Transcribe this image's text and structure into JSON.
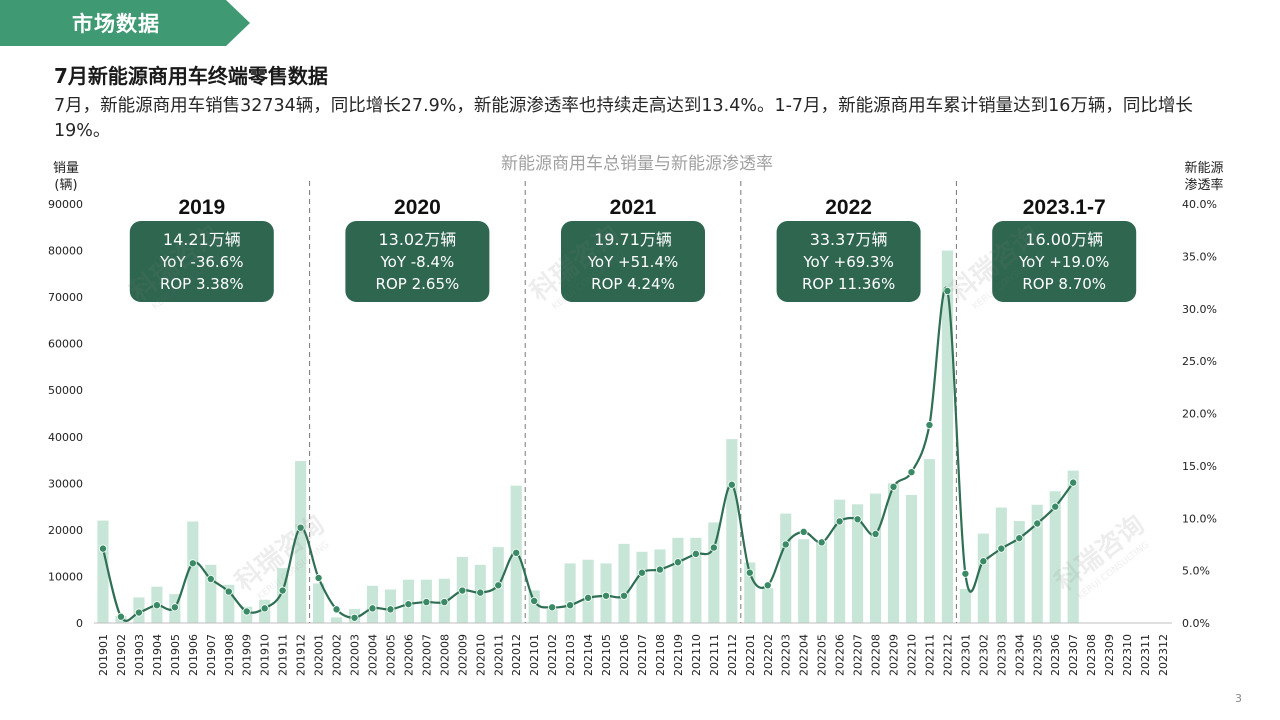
{
  "header": {
    "section_label": "市场数据"
  },
  "slide": {
    "title": "7月新能源商用车终端零售数据",
    "summary": "7月，新能源商用车销售32734辆，同比增长27.9%，新能源渗透率也持续走高达到13.4%。1-7月，新能源商用车累计销量达到16万辆，同比增长19%。",
    "page_number": "3"
  },
  "watermarks": [
    {
      "text": "科瑞咨询",
      "subtext": "KERUI CONSULTING"
    }
  ],
  "colors": {
    "banner": "#3f9a74",
    "bar": "#c8e6d8",
    "line": "#2f6f54",
    "marker": "#3a8a66",
    "box": "#2e6650",
    "divider": "#777777"
  },
  "chart_data": {
    "type": "bar",
    "title": "新能源商用车总销量与新能源渗透率",
    "ylabel_left": "销量\n(辆)",
    "ylabel_right": "新能源\n渗透率",
    "ylim_left": [
      0,
      90000
    ],
    "yticks_left": [
      "0",
      "10000",
      "20000",
      "30000",
      "40000",
      "50000",
      "60000",
      "70000",
      "80000",
      "90000"
    ],
    "ylim_right": [
      0,
      0.4
    ],
    "yticks_right": [
      "0.0%",
      "5.0%",
      "10.0%",
      "15.0%",
      "20.0%",
      "25.0%",
      "30.0%",
      "35.0%",
      "40.0%"
    ],
    "categories": [
      "201901",
      "201902",
      "201903",
      "201904",
      "201905",
      "201906",
      "201907",
      "201908",
      "201909",
      "201910",
      "201911",
      "201912",
      "202001",
      "202002",
      "202003",
      "202004",
      "202005",
      "202006",
      "202007",
      "202008",
      "202009",
      "202010",
      "202011",
      "202012",
      "202101",
      "202102",
      "202103",
      "202104",
      "202105",
      "202106",
      "202107",
      "202108",
      "202109",
      "202110",
      "202111",
      "202112",
      "202201",
      "202202",
      "202203",
      "202204",
      "202205",
      "202206",
      "202207",
      "202208",
      "202209",
      "202210",
      "202211",
      "202212",
      "202301",
      "202302",
      "202303",
      "202304",
      "202305",
      "202306",
      "202307",
      "202308",
      "202309",
      "202310",
      "202311",
      "202312"
    ],
    "series": [
      {
        "kind": "bar",
        "axis": "left",
        "values": [
          22000,
          1500,
          5500,
          7800,
          6200,
          21800,
          12500,
          8200,
          3500,
          5000,
          11800,
          34800,
          8500,
          1200,
          3000,
          8000,
          7200,
          9300,
          9300,
          9500,
          14200,
          12500,
          16300,
          29500,
          7000,
          3000,
          12800,
          13600,
          12800,
          17000,
          15300,
          15800,
          18300,
          18300,
          21600,
          39500,
          13000,
          7500,
          23500,
          18000,
          17500,
          26500,
          25500,
          27800,
          30000,
          27500,
          35200,
          80000,
          7300,
          19200,
          24800,
          21900,
          25400,
          28300,
          32734,
          null,
          null,
          null,
          null,
          null
        ]
      },
      {
        "kind": "line",
        "axis": "right",
        "values": [
          0.071,
          0.006,
          0.01,
          0.017,
          0.015,
          0.057,
          0.042,
          0.03,
          0.011,
          0.014,
          0.031,
          0.091,
          0.043,
          0.013,
          0.005,
          0.014,
          0.013,
          0.018,
          0.02,
          0.02,
          0.031,
          0.029,
          0.036,
          0.067,
          0.021,
          0.015,
          0.017,
          0.024,
          0.026,
          0.026,
          0.048,
          0.051,
          0.058,
          0.066,
          0.072,
          0.132,
          0.048,
          0.036,
          0.075,
          0.087,
          0.077,
          0.097,
          0.099,
          0.085,
          0.13,
          0.144,
          0.189,
          0.317,
          0.047,
          0.059,
          0.071,
          0.081,
          0.095,
          0.111,
          0.134,
          null,
          null,
          null,
          null,
          null
        ]
      }
    ],
    "annotations": [
      {
        "year": "2019",
        "lines": [
          "14.21万辆",
          "YoY -36.6%",
          "ROP 3.38%"
        ]
      },
      {
        "year": "2020",
        "lines": [
          "13.02万辆",
          "YoY -8.4%",
          "ROP 2.65%"
        ]
      },
      {
        "year": "2021",
        "lines": [
          "19.71万辆",
          "YoY +51.4%",
          "ROP 4.24%"
        ]
      },
      {
        "year": "2022",
        "lines": [
          "33.37万辆",
          "YoY +69.3%",
          "ROP 11.36%"
        ]
      },
      {
        "year": "2023.1-7",
        "lines": [
          "16.00万辆",
          "YoY +19.0%",
          "ROP 8.70%"
        ]
      }
    ],
    "grid": false,
    "legend": "none"
  }
}
